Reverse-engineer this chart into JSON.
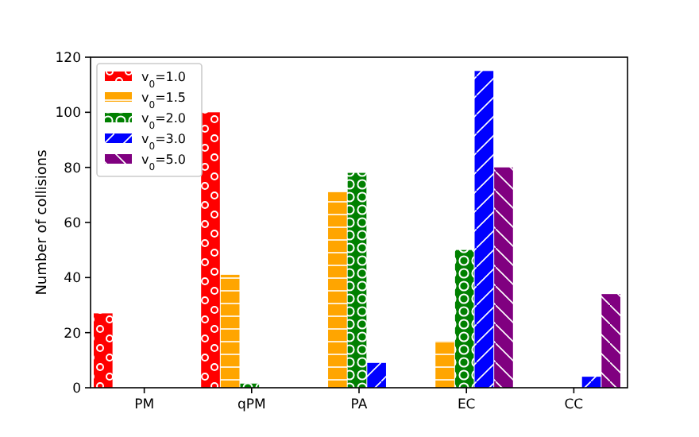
{
  "chart_data": {
    "type": "bar",
    "ylabel": "Number of collisions",
    "categories": [
      "PM",
      "qPM",
      "PA",
      "EC",
      "CC"
    ],
    "series": [
      {
        "name": "v$_{0}$=1.0",
        "color": "#ff0000",
        "values": [
          27,
          100,
          0,
          0,
          0
        ]
      },
      {
        "name": "v$_{0}$=1.5",
        "color": "#ffa500",
        "values": [
          0,
          41,
          71,
          17,
          0
        ]
      },
      {
        "name": "v$_{0}$=2.0",
        "color": "#008000",
        "values": [
          0,
          1.5,
          78,
          50,
          0
        ]
      },
      {
        "name": "v$_{0}$=3.0",
        "color": "#0000ff",
        "values": [
          0,
          0,
          9,
          115,
          4
        ]
      },
      {
        "name": "v$_{0}$=5.0",
        "color": "#800080",
        "values": [
          0,
          0,
          0,
          80,
          34
        ]
      }
    ],
    "ylim": [
      0,
      120
    ],
    "yticks": [
      0,
      20,
      40,
      60,
      80,
      100,
      120
    ],
    "legend": "top left"
  }
}
